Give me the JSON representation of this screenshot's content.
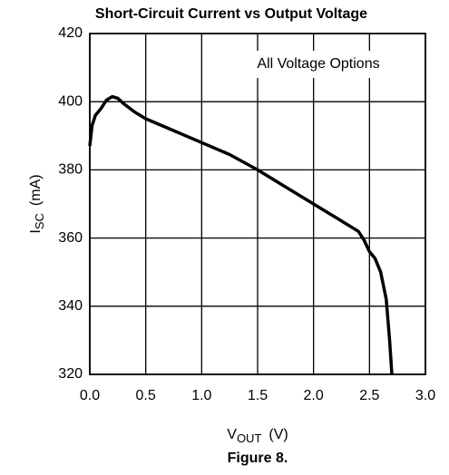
{
  "chart_data": {
    "type": "line",
    "title": "Short-Circuit Current vs Output Voltage",
    "annotation": "All Voltage Options",
    "x_label": {
      "main": "V",
      "sub": "OUT",
      "unit": "(V)"
    },
    "y_label": {
      "main": "I",
      "sub": "SC",
      "unit": "(mA)"
    },
    "caption": "Figure 8.",
    "xlim": [
      0,
      3
    ],
    "ylim": [
      320,
      420
    ],
    "xticks": [
      {
        "value": 0,
        "label": "0.0"
      },
      {
        "value": 0.5,
        "label": "0.5"
      },
      {
        "value": 1,
        "label": "1.0"
      },
      {
        "value": 1.5,
        "label": "1.5"
      },
      {
        "value": 2,
        "label": "2.0"
      },
      {
        "value": 2.5,
        "label": "2.5"
      },
      {
        "value": 3,
        "label": "3.0"
      }
    ],
    "yticks": [
      320,
      340,
      360,
      380,
      400,
      420
    ],
    "grid": true,
    "series": [
      {
        "color": "#000000",
        "x": [
          0,
          0.02,
          0.05,
          0.1,
          0.15,
          0.2,
          0.25,
          0.3,
          0.4,
          0.5,
          0.75,
          1.0,
          1.25,
          1.5,
          1.75,
          2.0,
          2.25,
          2.4,
          2.45,
          2.5,
          2.55,
          2.6,
          2.65,
          2.68,
          2.7
        ],
        "values": [
          387,
          393,
          396,
          398,
          400.5,
          401.5,
          401,
          399.5,
          397,
          395,
          391.5,
          388,
          384.5,
          380,
          375,
          370,
          365,
          362,
          359.5,
          356,
          354,
          350,
          342,
          330,
          320
        ]
      }
    ]
  }
}
